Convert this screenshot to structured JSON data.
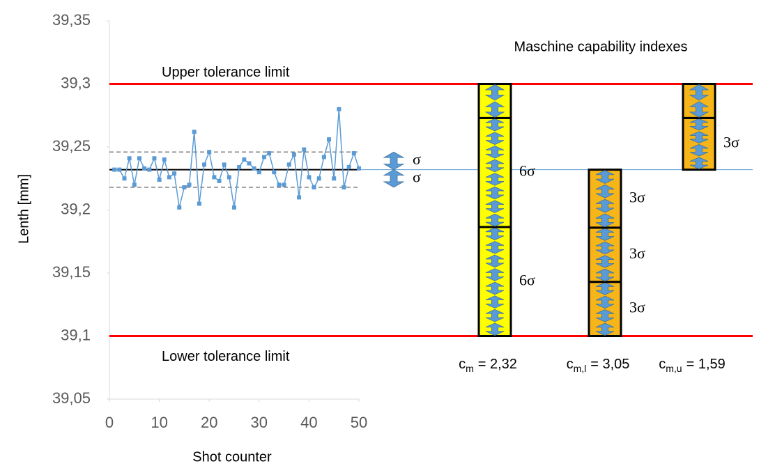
{
  "chart_data": {
    "type": "line",
    "x_label": "Shot counter",
    "y_label": "Lenth [mm]",
    "x": [
      1,
      2,
      3,
      4,
      5,
      6,
      7,
      8,
      9,
      10,
      11,
      12,
      13,
      14,
      15,
      16,
      17,
      18,
      19,
      20,
      21,
      22,
      23,
      24,
      25,
      26,
      27,
      28,
      29,
      30,
      31,
      32,
      33,
      34,
      35,
      36,
      37,
      38,
      39,
      40,
      41,
      42,
      43,
      44,
      45,
      46,
      47,
      48,
      49,
      50
    ],
    "series": [
      {
        "color": "#5b9bd5",
        "values": [
          39.232,
          39.232,
          39.225,
          39.241,
          39.22,
          39.241,
          39.233,
          39.232,
          39.241,
          39.224,
          39.24,
          39.226,
          39.229,
          39.202,
          39.218,
          39.22,
          39.262,
          39.205,
          39.236,
          39.246,
          39.226,
          39.223,
          39.236,
          39.226,
          39.202,
          39.234,
          39.24,
          39.237,
          39.233,
          39.23,
          39.242,
          39.245,
          39.23,
          39.22,
          39.22,
          39.236,
          39.244,
          39.21,
          39.248,
          39.226,
          39.218,
          39.225,
          39.242,
          39.256,
          39.225,
          39.28,
          39.218,
          39.234,
          39.245,
          39.233
        ]
      }
    ],
    "xlim": [
      0,
      50
    ],
    "ylim": [
      39.05,
      39.35
    ],
    "xticks": [
      0,
      10,
      20,
      30,
      40,
      50
    ],
    "yticks": [
      {
        "value": 39.05,
        "label": "39,05"
      },
      {
        "value": 39.1,
        "label": "39,1"
      },
      {
        "value": 39.15,
        "label": "39,15"
      },
      {
        "value": 39.2,
        "label": "39,2"
      },
      {
        "value": 39.25,
        "label": "39,25"
      },
      {
        "value": 39.3,
        "label": "39,3"
      },
      {
        "value": 39.35,
        "label": "39,35"
      }
    ],
    "mean": {
      "value": 39.232,
      "color": "#000000",
      "extension_color": "#5b9bd5"
    },
    "control_limits": {
      "values": [
        39.246,
        39.218
      ],
      "color": "#7f7f7f"
    },
    "tolerance_color": "#ff0000",
    "tolerance_limits": [
      {
        "label": "Upper tolerance limit",
        "value": 39.3
      },
      {
        "label": "Lower tolerance limit",
        "value": 39.1
      }
    ],
    "sigma": {
      "upper": 39.246,
      "lower": 39.218,
      "label": "σ"
    },
    "capability": {
      "title": "Maschine capability indexes",
      "bars": [
        {
          "symbol": "c",
          "subscript": "m",
          "text": "= 2,32",
          "color": "#ffff00",
          "bounds": [
            39.1,
            39.1865,
            39.273,
            39.3
          ],
          "segment_labels": [
            "6σ",
            "6σ",
            null
          ]
        },
        {
          "symbol": "c",
          "subscript": "m,l",
          "text": "= 3,05",
          "color": "#f6b619",
          "bounds": [
            39.1,
            39.143,
            39.186,
            39.232
          ],
          "segment_labels": [
            "3σ",
            "3σ",
            "3σ"
          ]
        },
        {
          "symbol": "c",
          "subscript": "m,u",
          "text": "= 1,59",
          "color": "#f6b619",
          "bounds": [
            39.232,
            39.273,
            39.3
          ],
          "segment_labels": [
            "3σ",
            null
          ]
        }
      ]
    }
  }
}
